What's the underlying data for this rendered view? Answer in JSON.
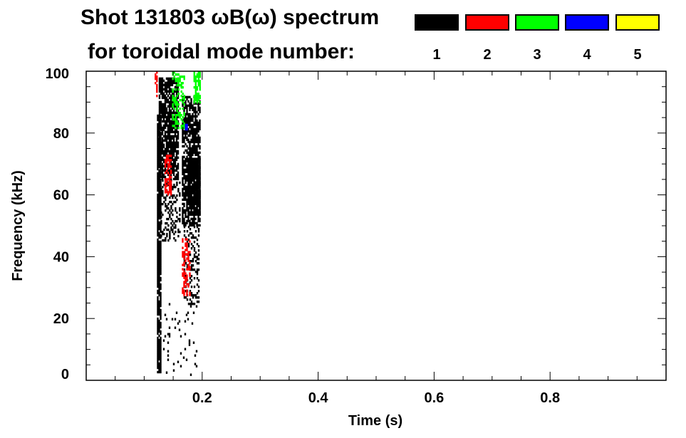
{
  "chart_data": {
    "type": "heatmap",
    "title": "Shot 131803 ωB(ω) spectrum",
    "subtitle": "for toroidal mode number:",
    "xlabel": "Time (s)",
    "ylabel": "Frequency (kHz)",
    "xlim": [
      0,
      1.0
    ],
    "ylim": [
      0,
      100
    ],
    "xticks": [
      "0.2",
      "0.4",
      "0.6",
      "0.8"
    ],
    "xtick_values": [
      0.2,
      0.4,
      0.6,
      0.8
    ],
    "yticks": [
      "0",
      "20",
      "40",
      "60",
      "80",
      "100"
    ],
    "ytick_values": [
      0,
      20,
      40,
      60,
      80,
      100
    ],
    "legend": [
      {
        "mode": "1",
        "color": "#000000"
      },
      {
        "mode": "2",
        "color": "#ff0000"
      },
      {
        "mode": "3",
        "color": "#00ff00"
      },
      {
        "mode": "4",
        "color": "#0000ff"
      },
      {
        "mode": "5",
        "color": "#ffff00"
      }
    ],
    "regions": [
      {
        "mode": 1,
        "t": [
          0.122,
          0.128
        ],
        "f": [
          3,
          86
        ],
        "density": 0.9
      },
      {
        "mode": 1,
        "t": [
          0.125,
          0.158
        ],
        "f": [
          65,
          98
        ],
        "density": 0.75
      },
      {
        "mode": 1,
        "t": [
          0.128,
          0.16
        ],
        "f": [
          45,
          65
        ],
        "density": 0.3
      },
      {
        "mode": 1,
        "t": [
          0.165,
          0.196
        ],
        "f": [
          50,
          92
        ],
        "density": 0.7
      },
      {
        "mode": 1,
        "t": [
          0.175,
          0.197
        ],
        "f": [
          54,
          72
        ],
        "density": 0.95
      },
      {
        "mode": 1,
        "t": [
          0.168,
          0.195
        ],
        "f": [
          25,
          50
        ],
        "density": 0.35
      },
      {
        "mode": 1,
        "t": [
          0.13,
          0.19
        ],
        "f": [
          2,
          25
        ],
        "density": 0.06
      },
      {
        "mode": 2,
        "t": [
          0.135,
          0.146
        ],
        "f": [
          60,
          73
        ],
        "density": 0.6
      },
      {
        "mode": 2,
        "t": [
          0.165,
          0.178
        ],
        "f": [
          28,
          46
        ],
        "density": 0.45
      },
      {
        "mode": 2,
        "t": [
          0.118,
          0.122
        ],
        "f": [
          92,
          100
        ],
        "density": 0.6
      },
      {
        "mode": 3,
        "t": [
          0.148,
          0.168
        ],
        "f": [
          82,
          100
        ],
        "density": 0.4
      },
      {
        "mode": 3,
        "t": [
          0.185,
          0.196
        ],
        "f": [
          90,
          100
        ],
        "density": 0.6
      },
      {
        "mode": 4,
        "t": [
          0.17,
          0.173
        ],
        "f": [
          81,
          83
        ],
        "density": 1
      }
    ]
  }
}
